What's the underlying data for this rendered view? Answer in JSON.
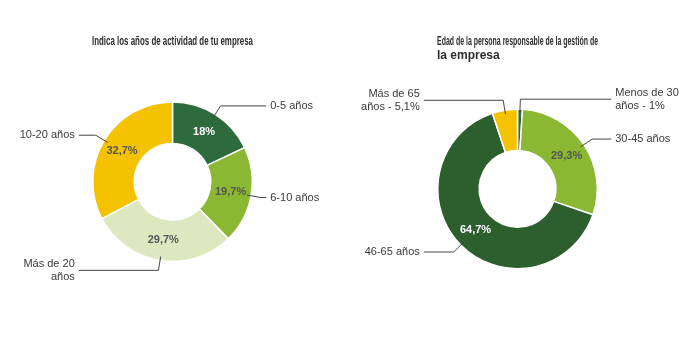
{
  "chart_data": [
    {
      "type": "doughnut",
      "title": "Indica los años de actividad de tu empresa",
      "categories": [
        "0-5 años",
        "6-10 años",
        "Más de 20\naños",
        "10-20 años"
      ],
      "values": [
        18.0,
        19.7,
        29.7,
        32.7
      ],
      "value_labels": [
        "18%",
        "19,7%",
        "29,7%",
        "32,7%"
      ],
      "colors": [
        "#2d6b3c",
        "#8ab832",
        "#dde8c0",
        "#f5c200"
      ],
      "data_labels": true,
      "legend": false
    },
    {
      "type": "doughnut",
      "title": "Edad de la persona responsable de la gestión de\nla empresa",
      "categories": [
        "Menos de 30\naños - 1%",
        "30-45 años",
        "46-65 años",
        "Más de 65\naños - 5,1%"
      ],
      "values": [
        1.0,
        29.3,
        64.7,
        5.1
      ],
      "value_labels": [
        null,
        "29,3%",
        "64,7%",
        null
      ],
      "colors": [
        "#2d6b3c",
        "#8ab832",
        "#2d5e2e",
        "#f5c200"
      ],
      "data_labels": true,
      "legend": false
    }
  ]
}
